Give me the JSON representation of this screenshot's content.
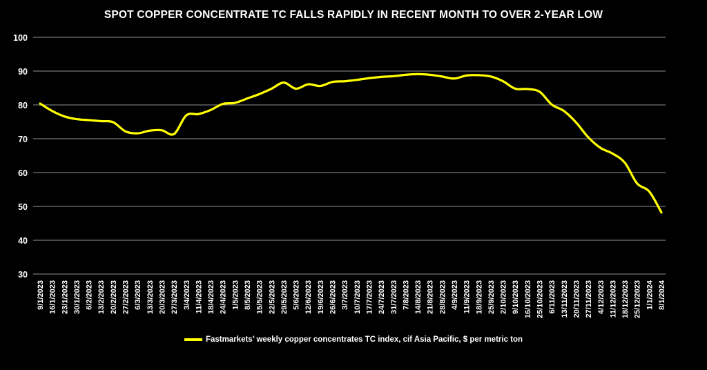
{
  "chart_data": {
    "type": "line",
    "title": "SPOT COPPER CONCENTRATE TC FALLS RAPIDLY IN RECENT MONTH TO OVER 2-YEAR LOW",
    "categories": [
      "9/1/2023",
      "16/1/2023",
      "23/1/2023",
      "30/1/2023",
      "6/2/2023",
      "13/2/2023",
      "20/2/2023",
      "27/2/2023",
      "6/3/2023",
      "13/3/2023",
      "20/3/2023",
      "27/3/2023",
      "3/4/2023",
      "11/4/2023",
      "18/4/2023",
      "24/4/2023",
      "1/5/2023",
      "8/5/2023",
      "15/5/2023",
      "22/5/2023",
      "29/5/2023",
      "5/6/2023",
      "12/6/2023",
      "19/6/2023",
      "26/6/2023",
      "3/7/2023",
      "10/7/2023",
      "17/7/2023",
      "24/7/2023",
      "31/7/2023",
      "7/8/2023",
      "14/8/2023",
      "21/8/2023",
      "28/8/2023",
      "4/9/2023",
      "11/9/2023",
      "18/9/2023",
      "25/9/2023",
      "2/10/2023",
      "9/10/2023",
      "16/10/2023",
      "25/10/2023",
      "6/11/2023",
      "13/11/2023",
      "20/11/2023",
      "27/11/2023",
      "4/12/2023",
      "11/12/2023",
      "18/12/2023",
      "25/12/2023",
      "1/1/2024",
      "8/1/2024"
    ],
    "series": [
      {
        "name": "Fastmarkets’ weekly copper concentrates TC index, cif Asia Pacific, $ per metric ton",
        "values": [
          80.4,
          78.2,
          76.6,
          75.8,
          75.5,
          75.2,
          74.9,
          72.2,
          71.6,
          72.4,
          72.5,
          71.4,
          76.9,
          77.3,
          78.5,
          80.3,
          80.6,
          81.9,
          83.2,
          84.8,
          86.6,
          84.8,
          86.1,
          85.6,
          86.8,
          87.0,
          87.4,
          87.9,
          88.3,
          88.5,
          88.9,
          89.1,
          88.9,
          88.4,
          87.8,
          88.7,
          88.8,
          88.4,
          87.0,
          84.8,
          84.7,
          83.9,
          80.1,
          78.2,
          74.8,
          70.4,
          67.3,
          65.6,
          62.9,
          56.8,
          54.4,
          48.2
        ]
      }
    ],
    "xlabel": "",
    "ylabel": "",
    "ylim": [
      30,
      100
    ],
    "yticks": [
      100,
      90,
      80,
      70,
      60,
      50,
      40,
      30
    ],
    "grid": "horizontal",
    "legend_position": "bottom",
    "line_smoothing": true,
    "colors": {
      "background": "#000000",
      "line": "#ffff00",
      "grid": "#949494",
      "text": "#ffffff"
    }
  }
}
